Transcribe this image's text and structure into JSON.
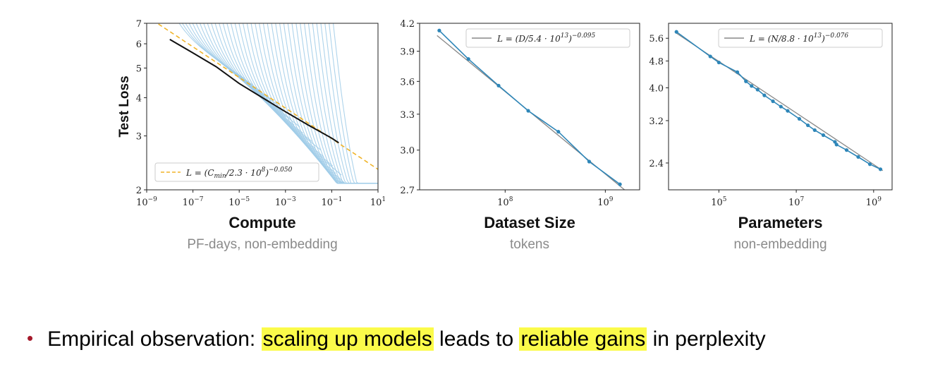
{
  "chart_data": [
    {
      "type": "line",
      "ylabel": "Test Loss",
      "xlabel": "Compute",
      "xlabel_sub": "PF-days, non-embedding",
      "x_scale": "log",
      "y_scale": "log",
      "xlim": [
        1e-09,
        10
      ],
      "ylim": [
        2,
        7
      ],
      "x_tick_labels": [
        "10^-9",
        "10^-7",
        "10^-5",
        "10^-3",
        "10^-1",
        "10^1"
      ],
      "y_tick_labels": [
        "2",
        "3",
        "4",
        "5",
        "6",
        "7"
      ],
      "legend": "L = (C_min/2.3·10^8)^-0.050",
      "legend_position": "lower-left",
      "fit": {
        "scale": 230000000.0,
        "exponent": -0.05
      },
      "frontier": {
        "x": [
          1e-08,
          1e-07,
          1e-06,
          1e-05,
          0.0001,
          0.001,
          0.01,
          0.1,
          0.2
        ],
        "y": [
          6.2,
          5.6,
          5.05,
          4.45,
          4.0,
          3.6,
          3.25,
          2.95,
          2.85
        ]
      },
      "curve_count": 40,
      "colors": {
        "curves": "#9fcbe8",
        "frontier": "#111111",
        "fit": "#f0b429"
      }
    },
    {
      "type": "line",
      "xlabel": "Dataset Size",
      "xlabel_sub": "tokens",
      "x_scale": "log",
      "y_scale": "log",
      "xlim": [
        14000000.0,
        2200000000.0
      ],
      "ylim": [
        2.7,
        4.2
      ],
      "x_tick_labels": [
        "10^8",
        "10^9"
      ],
      "y_tick_labels": [
        "2.7",
        "3.0",
        "3.3",
        "3.6",
        "3.9",
        "4.2"
      ],
      "legend": "L = (D/5.4·10^13)^-0.095",
      "legend_position": "top-right",
      "fit": {
        "scale": 54000000000000.0,
        "exponent": -0.095
      },
      "series": [
        {
          "x": [
            22000000.0,
            43000000.0,
            86000000.0,
            170000000.0,
            340000000.0,
            690000000.0,
            1400000000.0
          ],
          "y": [
            4.12,
            3.82,
            3.56,
            3.33,
            3.15,
            2.91,
            2.74
          ]
        }
      ],
      "colors": {
        "series": "#2e86b8",
        "fit": "#888888"
      }
    },
    {
      "type": "line",
      "xlabel": "Parameters",
      "xlabel_sub": "non-embedding",
      "x_scale": "log",
      "y_scale": "log",
      "xlim": [
        5000.0,
        3000000000.0
      ],
      "ylim": [
        2.0,
        6.2
      ],
      "x_tick_labels": [
        "10^5",
        "10^7",
        "10^9"
      ],
      "y_tick_labels": [
        "2.4",
        "3.2",
        "4.0",
        "4.8",
        "5.6"
      ],
      "legend": "L = (N/8.8·10^13)^-0.076",
      "legend_position": "top-right",
      "fit": {
        "scale": 88000000000000.0,
        "exponent": -0.076
      },
      "series": [
        {
          "x": [
            8000.0,
            60000.0,
            100000.0,
            300000.0,
            500000.0,
            700000.0,
            1000000.0,
            1500000.0,
            2500000.0,
            4000000.0,
            6000000.0,
            12000000.0,
            20000000.0,
            30000000.0,
            50000000.0,
            100000000.0,
            110000000.0,
            200000000.0,
            400000000.0,
            800000000.0,
            1500000000.0
          ],
          "y": [
            5.85,
            4.95,
            4.75,
            4.45,
            4.18,
            4.05,
            3.95,
            3.8,
            3.65,
            3.52,
            3.42,
            3.24,
            3.1,
            3.0,
            2.9,
            2.77,
            2.72,
            2.62,
            2.5,
            2.38,
            2.3
          ]
        }
      ],
      "colors": {
        "series": "#2e86b8",
        "fit": "#888888"
      }
    }
  ],
  "bullet": {
    "lead": "Empirical observation: ",
    "hl1": "scaling up models",
    "mid": " leads to ",
    "hl2": "reliable gains",
    "tail": " in perplexity",
    "dot": "•",
    "dot_color": "#a5192b",
    "highlight_color": "#fbfb4a"
  }
}
